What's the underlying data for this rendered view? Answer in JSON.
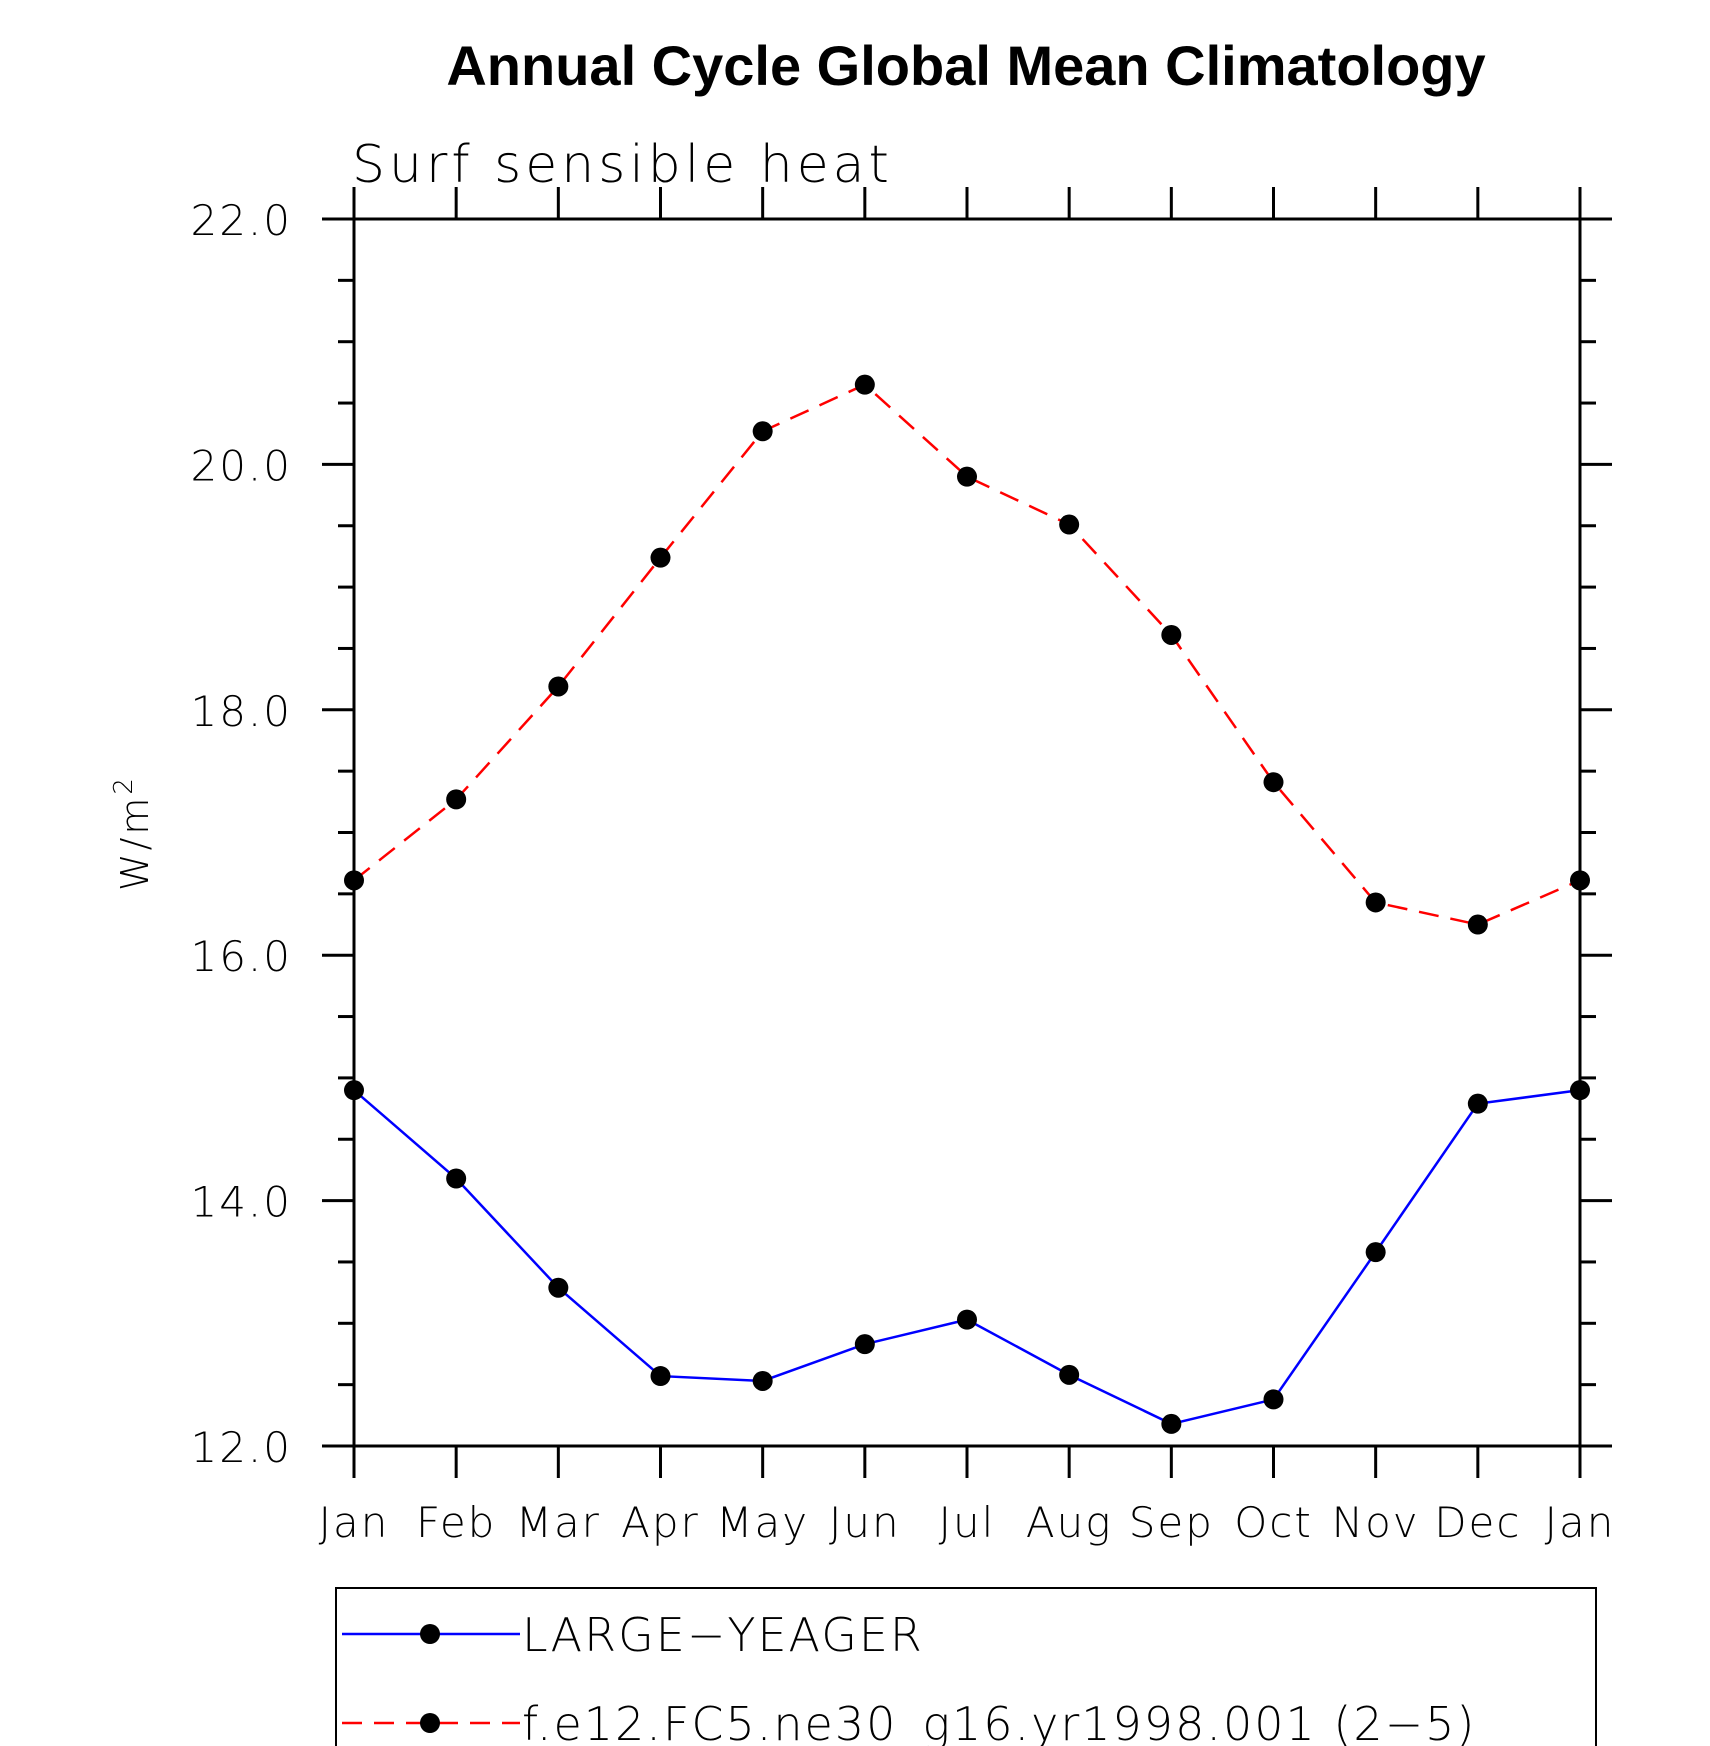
{
  "chart_data": {
    "type": "line",
    "title": "Annual Cycle Global Mean Climatology",
    "subtitle": "Surf sensible heat",
    "ylabel": "W/m",
    "ylabel_superscript": "2",
    "xlabel": "",
    "categories": [
      "Jan",
      "Feb",
      "Mar",
      "Apr",
      "May",
      "Jun",
      "Jul",
      "Aug",
      "Sep",
      "Oct",
      "Nov",
      "Dec",
      "Jan"
    ],
    "ylim": [
      12.0,
      22.0
    ],
    "yticks": [
      "12.0",
      "14.0",
      "16.0",
      "18.0",
      "20.0",
      "22.0"
    ],
    "grid": false,
    "legend_position": "bottom",
    "series": [
      {
        "name": "LARGE−YEAGER",
        "color": "#0000ff",
        "dash": "solid",
        "values": [
          14.9,
          14.18,
          13.29,
          12.57,
          12.53,
          12.83,
          13.03,
          12.58,
          12.18,
          12.38,
          13.58,
          14.79,
          14.9
        ]
      },
      {
        "name": "f.e12.FC5.ne30_g16.yr1998.001 (2−5)",
        "color": "#ff0000",
        "dash": "dashed",
        "values": [
          16.61,
          17.27,
          18.19,
          19.24,
          20.27,
          20.65,
          19.9,
          19.51,
          18.61,
          17.41,
          16.43,
          16.25,
          16.61
        ]
      }
    ]
  }
}
